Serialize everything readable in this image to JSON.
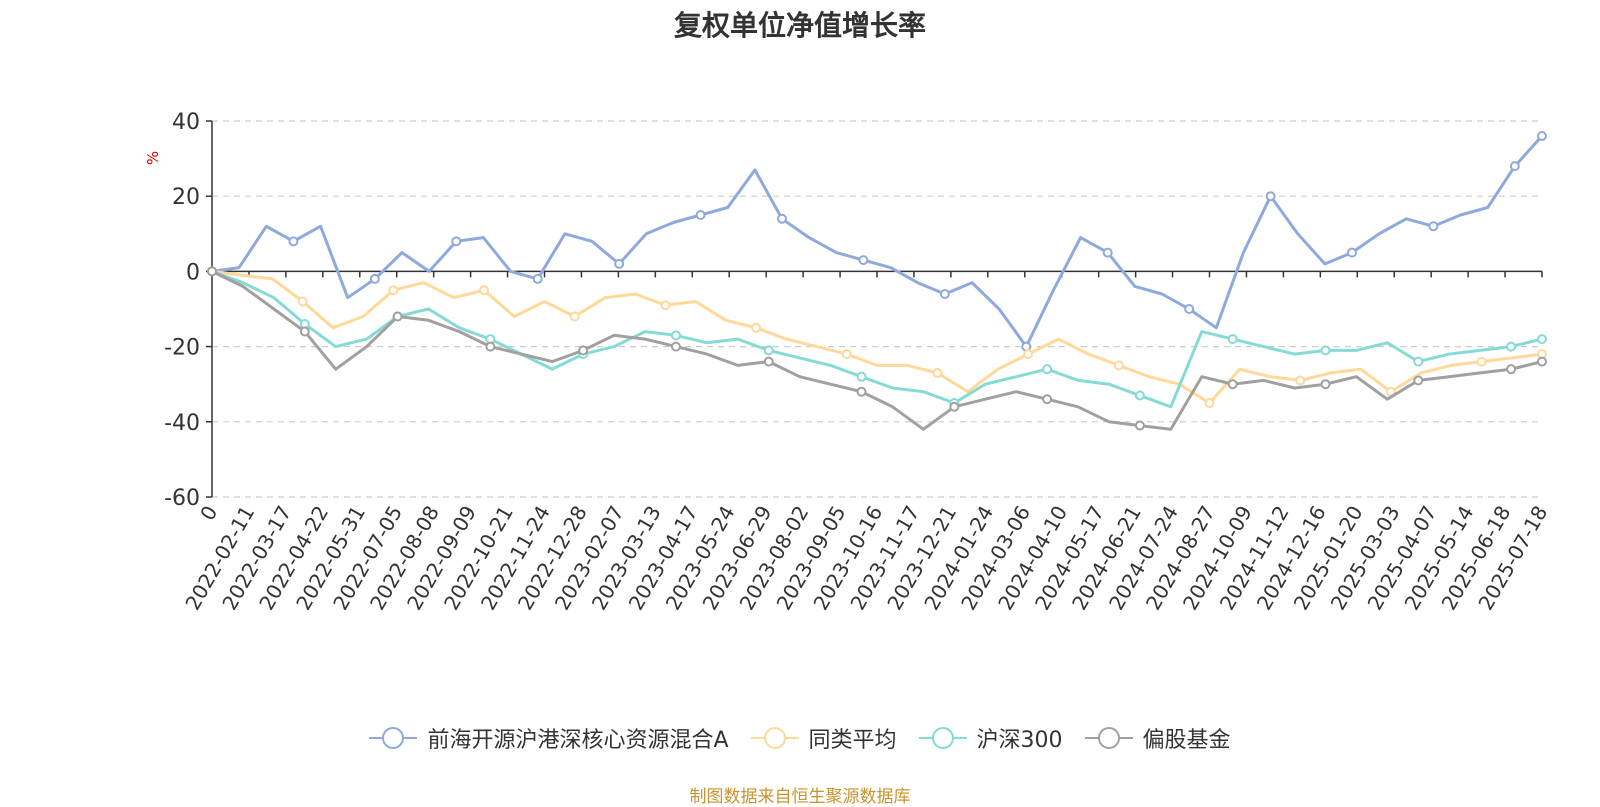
{
  "chart_data": {
    "type": "line",
    "title": "复权单位净值增长率",
    "ylabel": "%",
    "ylim": [
      -60,
      40
    ],
    "yticks": [
      -60,
      -40,
      -20,
      0,
      20,
      40
    ],
    "grid": true,
    "legend_position": "bottom",
    "x_tick_labels": [
      "0",
      "2022-02-11",
      "2022-03-17",
      "2022-04-22",
      "2022-05-31",
      "2022-07-05",
      "2022-08-08",
      "2022-09-09",
      "2022-10-21",
      "2022-11-24",
      "2022-12-28",
      "2023-02-07",
      "2023-03-13",
      "2023-04-17",
      "2023-05-24",
      "2023-06-29",
      "2023-08-02",
      "2023-09-05",
      "2023-10-16",
      "2023-11-17",
      "2023-12-21",
      "2024-01-24",
      "2024-03-06",
      "2024-04-10",
      "2024-05-17",
      "2024-06-21",
      "2024-07-24",
      "2024-08-27",
      "2024-10-09",
      "2024-11-12",
      "2024-12-16",
      "2025-01-20",
      "2025-03-03",
      "2025-04-07",
      "2025-05-14",
      "2025-06-18",
      "2025-07-18"
    ],
    "series": [
      {
        "name": "前海开源沪港深核心资源混合A",
        "color": "#8eaadc",
        "values": [
          0,
          1,
          12,
          8,
          12,
          -7,
          -2,
          5,
          0,
          8,
          9,
          0,
          -2,
          10,
          8,
          2,
          10,
          13,
          15,
          17,
          27,
          14,
          9,
          5,
          3,
          1,
          -3,
          -6,
          -3,
          -10,
          -20,
          -5,
          9,
          5,
          -4,
          -6,
          -10,
          -15,
          5,
          20,
          10,
          2,
          5,
          10,
          14,
          12,
          15,
          17,
          28,
          36
        ]
      },
      {
        "name": "同类平均",
        "color": "#ffd89a",
        "values": [
          0,
          -1,
          -2,
          -8,
          -15,
          -12,
          -5,
          -3,
          -7,
          -5,
          -12,
          -8,
          -12,
          -7,
          -6,
          -9,
          -8,
          -13,
          -15,
          -18,
          -20,
          -22,
          -25,
          -25,
          -27,
          -32,
          -26,
          -22,
          -18,
          -22,
          -25,
          -28,
          -30,
          -35,
          -26,
          -28,
          -29,
          -27,
          -26,
          -32,
          -27,
          -25,
          -24,
          -23,
          -22
        ]
      },
      {
        "name": "沪深300",
        "color": "#86dad6",
        "values": [
          0,
          -3,
          -7,
          -14,
          -20,
          -18,
          -12,
          -10,
          -15,
          -18,
          -22,
          -26,
          -22,
          -20,
          -16,
          -17,
          -19,
          -18,
          -21,
          -23,
          -25,
          -28,
          -31,
          -32,
          -35,
          -30,
          -28,
          -26,
          -29,
          -30,
          -33,
          -36,
          -16,
          -18,
          -20,
          -22,
          -21,
          -21,
          -19,
          -24,
          -22,
          -21,
          -20,
          -18
        ]
      },
      {
        "name": "偏股基金",
        "color": "#a0a0a0",
        "values": [
          0,
          -4,
          -10,
          -16,
          -26,
          -20,
          -12,
          -13,
          -16,
          -20,
          -22,
          -24,
          -21,
          -17,
          -18,
          -20,
          -22,
          -25,
          -24,
          -28,
          -30,
          -32,
          -36,
          -42,
          -36,
          -34,
          -32,
          -34,
          -36,
          -40,
          -41,
          -42,
          -28,
          -30,
          -29,
          -31,
          -30,
          -28,
          -34,
          -29,
          -28,
          -27,
          -26,
          -24
        ]
      }
    ]
  },
  "legend": {
    "items": [
      "前海开源沪港深核心资源混合A",
      "同类平均",
      "沪深300",
      "偏股基金"
    ]
  },
  "source_note": "制图数据来自恒生聚源数据库"
}
